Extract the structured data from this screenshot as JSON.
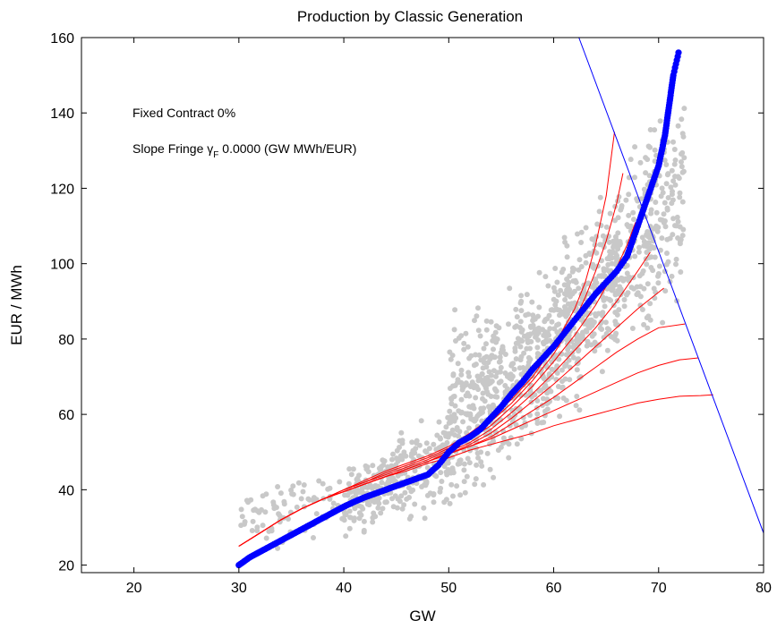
{
  "chart_data": {
    "type": "scatter",
    "title": "Production by Classic Generation",
    "xlabel": "GW",
    "ylabel": "EUR / MWh",
    "xlim": [
      15,
      80
    ],
    "ylim": [
      18,
      160
    ],
    "xticks": [
      20,
      30,
      40,
      50,
      60,
      70,
      80
    ],
    "yticks": [
      20,
      40,
      60,
      80,
      100,
      120,
      140,
      160
    ],
    "grid": false,
    "annotations": {
      "line1": "Fixed Contract 0%",
      "line2_prefix": "Slope Fringe ",
      "line2_symbol": "γ",
      "line2_subscript": "F",
      "line2_suffix": " 0.0000 (GW MWh/EUR)"
    },
    "colors": {
      "scatter": "#c8c8c8",
      "supply_curve": "#0000ff",
      "red_curves": "#ff0000",
      "demand_line": "#0000ff"
    },
    "supply_curve": {
      "x": [
        30,
        31,
        32,
        33,
        34,
        35,
        36,
        37,
        38,
        39,
        40,
        41,
        42,
        43,
        44,
        45,
        46,
        47,
        48,
        49,
        50,
        51,
        52,
        53,
        54,
        55,
        56,
        57,
        58,
        59,
        60,
        61,
        62,
        63,
        64,
        65,
        66,
        67,
        67.5,
        68,
        68.5,
        69,
        69.5,
        70,
        70.3,
        70.6,
        70.8,
        71,
        71.2,
        71.4,
        71.9
      ],
      "y": [
        20,
        22,
        23.5,
        25,
        26.5,
        28,
        29.5,
        31,
        32.5,
        34,
        35.5,
        36.8,
        38,
        39,
        40,
        41,
        42,
        43,
        44,
        46.5,
        50,
        52.5,
        54,
        56,
        59,
        62,
        65.5,
        68.5,
        72,
        75,
        78,
        81.5,
        85,
        88.5,
        92,
        95,
        98,
        102,
        106,
        110,
        114,
        118,
        122,
        126,
        130,
        134,
        138,
        142,
        146,
        150,
        156
      ]
    },
    "red_curves": [
      {
        "x": [
          30,
          32,
          34,
          36,
          38,
          40,
          42,
          44,
          46,
          48,
          50,
          52,
          54,
          56,
          58,
          60,
          62,
          63,
          64,
          65,
          65.8
        ],
        "y": [
          25,
          28.5,
          32,
          35,
          37.5,
          40,
          42.5,
          45,
          47,
          49,
          51.5,
          55,
          59,
          64,
          70,
          78,
          88,
          95,
          105,
          118,
          135
        ]
      },
      {
        "x": [
          30,
          32,
          34,
          36,
          38,
          40,
          42,
          44,
          46,
          48,
          50,
          52,
          54,
          56,
          58,
          60,
          62,
          63,
          64,
          65,
          66,
          66.6
        ],
        "y": [
          25,
          28.5,
          32,
          35,
          37.5,
          40,
          42,
          44.5,
          46.5,
          48.5,
          51,
          54,
          58,
          63,
          69,
          76,
          85,
          91,
          98,
          106,
          116,
          124
        ]
      },
      {
        "x": [
          30,
          32,
          34,
          36,
          38,
          40,
          42,
          44,
          46,
          48,
          50,
          52,
          54,
          56,
          58,
          60,
          62,
          64,
          65,
          66,
          67,
          67.8
        ],
        "y": [
          25,
          28.5,
          32,
          35,
          37.5,
          40,
          42,
          44,
          46,
          48,
          50.5,
          53.5,
          57,
          62,
          67.5,
          74,
          81,
          89,
          94,
          99,
          105,
          111
        ]
      },
      {
        "x": [
          30,
          32,
          34,
          36,
          38,
          40,
          42,
          44,
          46,
          48,
          50,
          52,
          54,
          56,
          58,
          60,
          62,
          64,
          66,
          67,
          68,
          69.2
        ],
        "y": [
          25,
          28.5,
          32,
          35,
          37.5,
          39.5,
          41.5,
          43.5,
          45.5,
          47.5,
          50,
          52.5,
          56,
          60.5,
          65.5,
          71,
          77,
          83,
          90,
          94,
          98,
          103
        ]
      },
      {
        "x": [
          30,
          32,
          34,
          36,
          38,
          40,
          42,
          44,
          46,
          48,
          50,
          52,
          54,
          56,
          58,
          60,
          62,
          64,
          66,
          68,
          70.5
        ],
        "y": [
          25,
          28.5,
          32,
          35,
          37.5,
          39.5,
          41.5,
          43.5,
          45.5,
          47.5,
          49.5,
          52,
          55,
          59,
          63.5,
          68,
          73,
          78,
          83,
          88,
          93.5
        ]
      },
      {
        "x": [
          30,
          32,
          34,
          36,
          38,
          40,
          42,
          44,
          46,
          48,
          50,
          52,
          54,
          56,
          58,
          60,
          62,
          64,
          66,
          68,
          70,
          72.5
        ],
        "y": [
          25,
          28.5,
          32,
          35,
          37.5,
          39.5,
          41.5,
          43.5,
          45.5,
          47.5,
          49.5,
          51.5,
          54,
          57.5,
          61,
          64.5,
          68.5,
          72.5,
          76.5,
          80,
          83,
          84
        ]
      },
      {
        "x": [
          30,
          32,
          34,
          36,
          38,
          40,
          42,
          44,
          46,
          48,
          50,
          52,
          54,
          56,
          58,
          60,
          62,
          64,
          66,
          68,
          70,
          72,
          73.8
        ],
        "y": [
          25,
          28.5,
          32,
          35,
          37.5,
          39.5,
          41.5,
          43.5,
          45.5,
          47.5,
          49.5,
          51.5,
          53.5,
          56,
          58.5,
          61,
          63.5,
          66,
          68.5,
          71,
          73,
          74.5,
          75
        ]
      },
      {
        "x": [
          30,
          32,
          34,
          36,
          38,
          40,
          42,
          44,
          46,
          48,
          50,
          52,
          54,
          56,
          58,
          60,
          62,
          64,
          66,
          68,
          70,
          72,
          74,
          75.2
        ],
        "y": [
          25,
          28.5,
          32,
          35,
          37.5,
          39.5,
          41.5,
          43.5,
          45,
          47,
          48.5,
          50.5,
          52,
          53.5,
          55,
          57,
          58.5,
          60,
          61.5,
          63,
          64,
          64.8,
          65,
          65.2
        ]
      }
    ],
    "demand_line": {
      "x": [
        62.4,
        80
      ],
      "y": [
        160,
        28.5
      ]
    },
    "scatter_cloud": [
      {
        "x0": 30,
        "x1": 40,
        "ymin_at_x0": 22,
        "ymax_at_x0": 43,
        "ymin_at_x1": 25,
        "ymax_at_x1": 48,
        "count": 80
      },
      {
        "x0": 40,
        "x1": 50,
        "ymin_at_x0": 25,
        "ymax_at_x0": 48,
        "ymin_at_x1": 32,
        "ymax_at_x1": 65,
        "count": 300
      },
      {
        "x0": 50,
        "x1": 60,
        "ymin_at_x0": 28,
        "ymax_at_x0": 90,
        "ymin_at_x1": 50,
        "ymax_at_x1": 105,
        "count": 500
      },
      {
        "x0": 60,
        "x1": 66,
        "ymin_at_x0": 50,
        "ymax_at_x0": 108,
        "ymin_at_x1": 70,
        "ymax_at_x1": 125,
        "count": 350
      },
      {
        "x0": 66,
        "x1": 72.5,
        "ymin_at_x0": 70,
        "ymax_at_x0": 130,
        "ymin_at_x1": 80,
        "ymax_at_x1": 158,
        "count": 260
      }
    ]
  }
}
